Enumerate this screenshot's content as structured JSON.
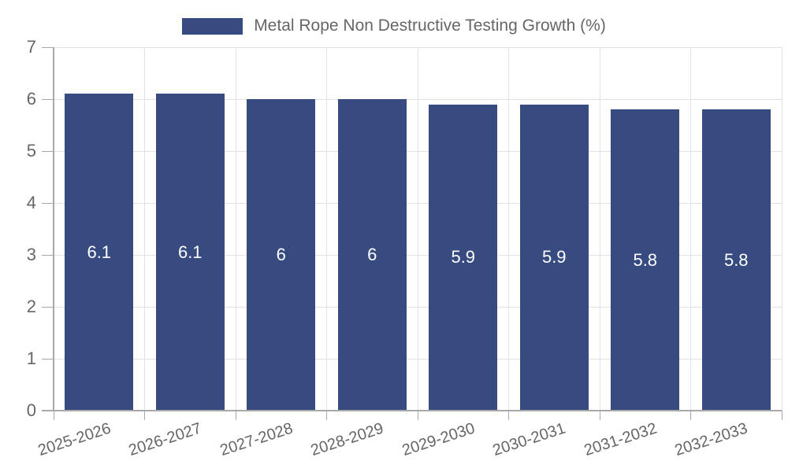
{
  "chart_data": {
    "type": "bar",
    "title": "Metal Rope Non Destructive Testing Growth (%)",
    "legend": {
      "label": "Metal Rope Non Destructive Testing Growth (%)",
      "position": "top"
    },
    "categories": [
      "2025-2026",
      "2026-2027",
      "2027-2028",
      "2028-2029",
      "2029-2030",
      "2030-2031",
      "2031-2032",
      "2032-2033"
    ],
    "series": [
      {
        "name": "Metal Rope Non Destructive Testing Growth (%)",
        "values": [
          6.1,
          6.1,
          6,
          6,
          5.9,
          5.9,
          5.8,
          5.8
        ]
      }
    ],
    "bar_labels": [
      "6.1",
      "6.1",
      "6",
      "6",
      "5.9",
      "5.9",
      "5.8",
      "5.8"
    ],
    "xlabel": "",
    "ylabel": "",
    "ylim": [
      0,
      7
    ],
    "yticks": [
      0,
      1,
      2,
      3,
      4,
      5,
      6,
      7
    ],
    "grid": true,
    "x_tick_rotation_deg": -18,
    "colors": {
      "bar": "#374b81",
      "grid": "#e2e2e2",
      "axis": "#a8a8a8",
      "tick_text": "#666666",
      "legend_text": "#666666",
      "bar_label_text": "#ffffff",
      "background": "#ffffff"
    }
  }
}
